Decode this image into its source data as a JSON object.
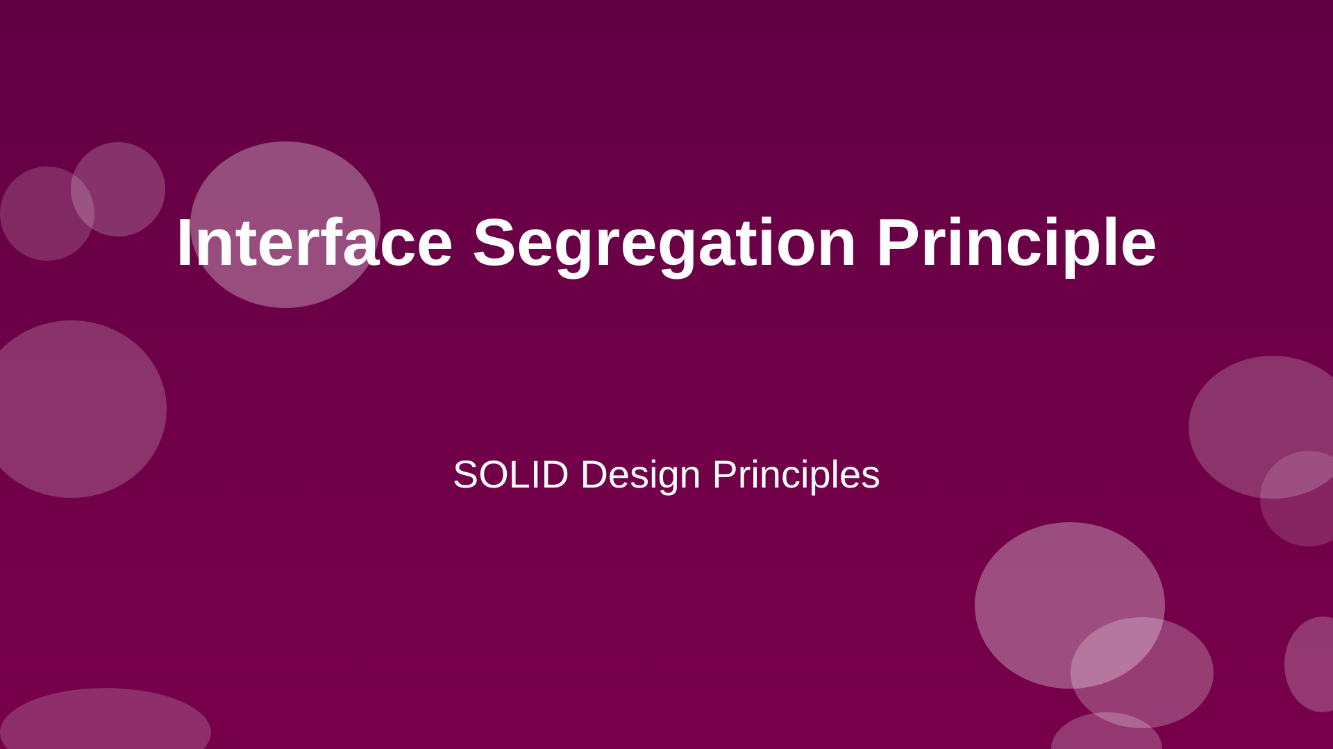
{
  "slide": {
    "title": "Interface Segregation Principle",
    "subtitle": "SOLID Design Principles"
  },
  "colors": {
    "background_top": "#620044",
    "background_bottom": "#77004a",
    "text": "#ffffff",
    "bubble": "#ffffff"
  }
}
